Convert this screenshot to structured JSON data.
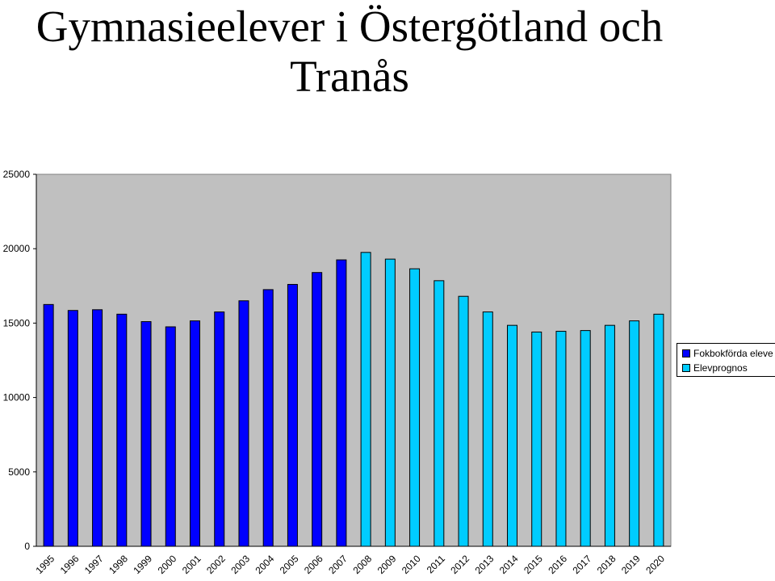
{
  "page": {
    "title_line1": "Gymnasieelever i Östergötland och",
    "title_line2": "Tranås"
  },
  "legend": {
    "items": [
      {
        "label": "Fokbokförda eleve",
        "color": "#0000ff"
      },
      {
        "label": "Elevprognos",
        "color": "#00ccff"
      }
    ]
  },
  "chart_data": {
    "type": "bar",
    "title": "Gymnasieelever i Östergötland och Tranås",
    "categories": [
      "1995",
      "1996",
      "1997",
      "1998",
      "1999",
      "2000",
      "2001",
      "2002",
      "2003",
      "2004",
      "2005",
      "2006",
      "2007",
      "2008",
      "2009",
      "2010",
      "2011",
      "2012",
      "2013",
      "2014",
      "2015",
      "2016",
      "2017",
      "2018",
      "2019",
      "2020"
    ],
    "series": [
      {
        "name": "Fokbokförda eleve",
        "color": "#0000ff",
        "values": [
          16250,
          15850,
          15900,
          15600,
          15100,
          14750,
          15150,
          15750,
          16500,
          17250,
          17600,
          18400,
          19250,
          null,
          null,
          null,
          null,
          null,
          null,
          null,
          null,
          null,
          null,
          null,
          null,
          null
        ]
      },
      {
        "name": "Elevprognos",
        "color": "#00ccff",
        "values": [
          null,
          null,
          null,
          null,
          null,
          null,
          null,
          null,
          null,
          null,
          null,
          null,
          null,
          19750,
          19300,
          18650,
          17850,
          16800,
          15750,
          14850,
          14400,
          14450,
          14500,
          14850,
          15150,
          15600
        ]
      }
    ],
    "yticks": [
      0,
      5000,
      10000,
      15000,
      20000,
      25000
    ],
    "ylim": [
      0,
      25000
    ],
    "grid": false,
    "plot_background": "#c0c0c0",
    "legend_position": "right"
  }
}
